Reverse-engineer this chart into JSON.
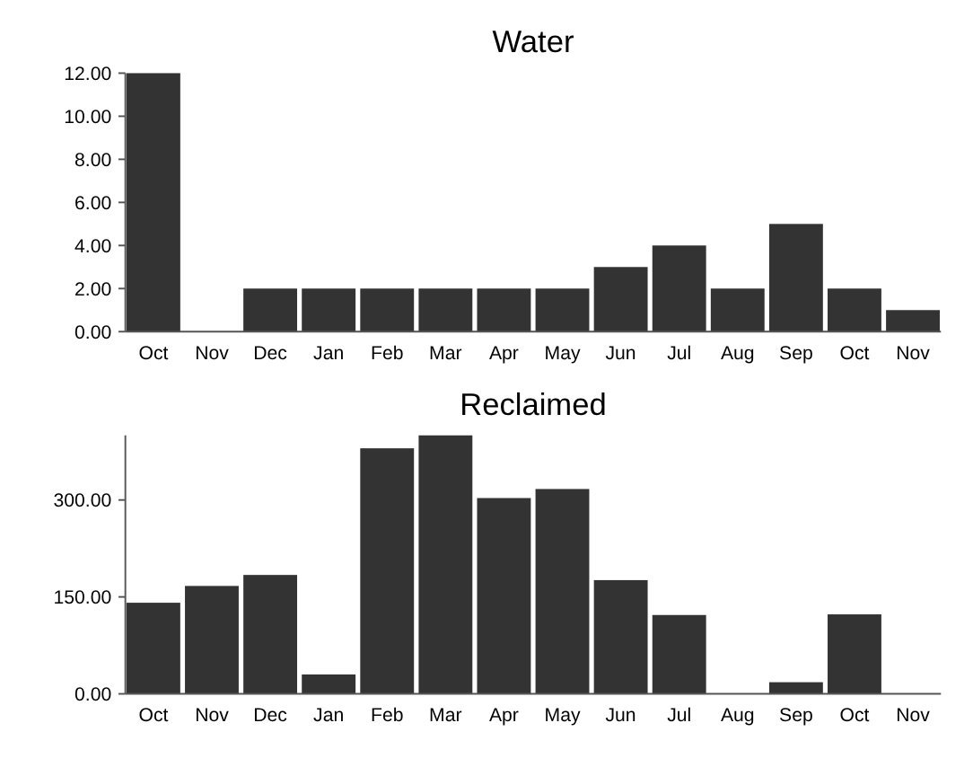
{
  "chart_data": [
    {
      "type": "bar",
      "title": "Water",
      "categories": [
        "Oct",
        "Nov",
        "Dec",
        "Jan",
        "Feb",
        "Mar",
        "Apr",
        "May",
        "Jun",
        "Jul",
        "Aug",
        "Sep",
        "Oct",
        "Nov"
      ],
      "values": [
        12,
        0,
        2,
        2,
        2,
        2,
        2,
        2,
        3,
        4,
        2,
        5,
        2,
        1
      ],
      "color": "#333333",
      "ylim": [
        0,
        12
      ],
      "yticks": [
        {
          "value": 0,
          "label": "0.00"
        },
        {
          "value": 2,
          "label": "2.00"
        },
        {
          "value": 4,
          "label": "4.00"
        },
        {
          "value": 6,
          "label": "6.00"
        },
        {
          "value": 8,
          "label": "8.00"
        },
        {
          "value": 10,
          "label": "10.00"
        },
        {
          "value": 12,
          "label": "12.00"
        }
      ]
    },
    {
      "type": "bar",
      "title": "Reclaimed",
      "categories": [
        "Oct",
        "Nov",
        "Dec",
        "Jan",
        "Feb",
        "Mar",
        "Apr",
        "May",
        "Jun",
        "Jul",
        "Aug",
        "Sep",
        "Oct",
        "Nov"
      ],
      "values": [
        141,
        167,
        184,
        30,
        380,
        400,
        303,
        317,
        176,
        122,
        0,
        18,
        123,
        0
      ],
      "color": "#333333",
      "ylim": [
        0,
        400
      ],
      "yticks": [
        {
          "value": 0,
          "label": "0.00"
        },
        {
          "value": 150,
          "label": "150.00"
        },
        {
          "value": 300,
          "label": "300.00"
        }
      ]
    }
  ]
}
